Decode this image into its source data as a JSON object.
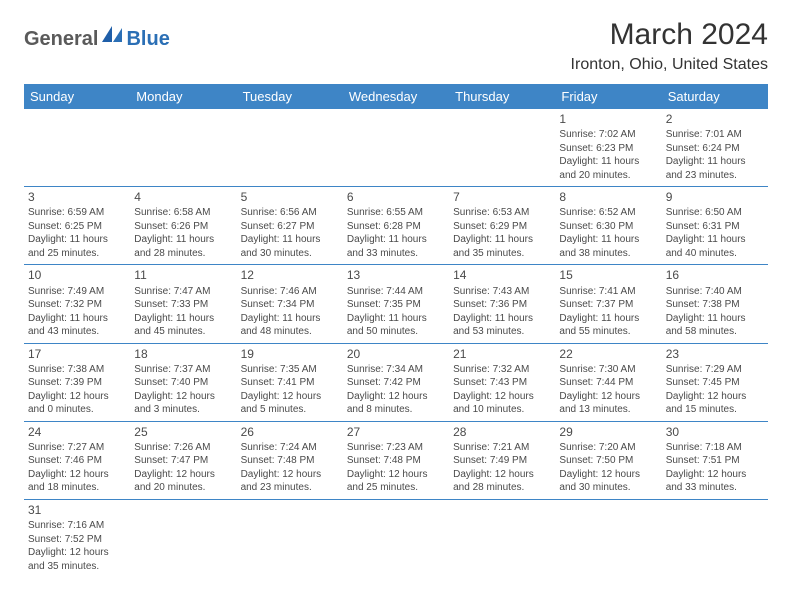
{
  "logo": {
    "part1": "General",
    "part2": "Blue"
  },
  "title": "March 2024",
  "location": "Ironton, Ohio, United States",
  "colors": {
    "header_bg": "#3e85c6",
    "header_text": "#ffffff",
    "border": "#3e85c6",
    "text": "#4a4a4a",
    "logo_gray": "#5a5a5a",
    "logo_blue": "#2b6fb5"
  },
  "day_headers": [
    "Sunday",
    "Monday",
    "Tuesday",
    "Wednesday",
    "Thursday",
    "Friday",
    "Saturday"
  ],
  "weeks": [
    [
      null,
      null,
      null,
      null,
      null,
      {
        "n": "1",
        "sr": "Sunrise: 7:02 AM",
        "ss": "Sunset: 6:23 PM",
        "d1": "Daylight: 11 hours",
        "d2": "and 20 minutes."
      },
      {
        "n": "2",
        "sr": "Sunrise: 7:01 AM",
        "ss": "Sunset: 6:24 PM",
        "d1": "Daylight: 11 hours",
        "d2": "and 23 minutes."
      }
    ],
    [
      {
        "n": "3",
        "sr": "Sunrise: 6:59 AM",
        "ss": "Sunset: 6:25 PM",
        "d1": "Daylight: 11 hours",
        "d2": "and 25 minutes."
      },
      {
        "n": "4",
        "sr": "Sunrise: 6:58 AM",
        "ss": "Sunset: 6:26 PM",
        "d1": "Daylight: 11 hours",
        "d2": "and 28 minutes."
      },
      {
        "n": "5",
        "sr": "Sunrise: 6:56 AM",
        "ss": "Sunset: 6:27 PM",
        "d1": "Daylight: 11 hours",
        "d2": "and 30 minutes."
      },
      {
        "n": "6",
        "sr": "Sunrise: 6:55 AM",
        "ss": "Sunset: 6:28 PM",
        "d1": "Daylight: 11 hours",
        "d2": "and 33 minutes."
      },
      {
        "n": "7",
        "sr": "Sunrise: 6:53 AM",
        "ss": "Sunset: 6:29 PM",
        "d1": "Daylight: 11 hours",
        "d2": "and 35 minutes."
      },
      {
        "n": "8",
        "sr": "Sunrise: 6:52 AM",
        "ss": "Sunset: 6:30 PM",
        "d1": "Daylight: 11 hours",
        "d2": "and 38 minutes."
      },
      {
        "n": "9",
        "sr": "Sunrise: 6:50 AM",
        "ss": "Sunset: 6:31 PM",
        "d1": "Daylight: 11 hours",
        "d2": "and 40 minutes."
      }
    ],
    [
      {
        "n": "10",
        "sr": "Sunrise: 7:49 AM",
        "ss": "Sunset: 7:32 PM",
        "d1": "Daylight: 11 hours",
        "d2": "and 43 minutes."
      },
      {
        "n": "11",
        "sr": "Sunrise: 7:47 AM",
        "ss": "Sunset: 7:33 PM",
        "d1": "Daylight: 11 hours",
        "d2": "and 45 minutes."
      },
      {
        "n": "12",
        "sr": "Sunrise: 7:46 AM",
        "ss": "Sunset: 7:34 PM",
        "d1": "Daylight: 11 hours",
        "d2": "and 48 minutes."
      },
      {
        "n": "13",
        "sr": "Sunrise: 7:44 AM",
        "ss": "Sunset: 7:35 PM",
        "d1": "Daylight: 11 hours",
        "d2": "and 50 minutes."
      },
      {
        "n": "14",
        "sr": "Sunrise: 7:43 AM",
        "ss": "Sunset: 7:36 PM",
        "d1": "Daylight: 11 hours",
        "d2": "and 53 minutes."
      },
      {
        "n": "15",
        "sr": "Sunrise: 7:41 AM",
        "ss": "Sunset: 7:37 PM",
        "d1": "Daylight: 11 hours",
        "d2": "and 55 minutes."
      },
      {
        "n": "16",
        "sr": "Sunrise: 7:40 AM",
        "ss": "Sunset: 7:38 PM",
        "d1": "Daylight: 11 hours",
        "d2": "and 58 minutes."
      }
    ],
    [
      {
        "n": "17",
        "sr": "Sunrise: 7:38 AM",
        "ss": "Sunset: 7:39 PM",
        "d1": "Daylight: 12 hours",
        "d2": "and 0 minutes."
      },
      {
        "n": "18",
        "sr": "Sunrise: 7:37 AM",
        "ss": "Sunset: 7:40 PM",
        "d1": "Daylight: 12 hours",
        "d2": "and 3 minutes."
      },
      {
        "n": "19",
        "sr": "Sunrise: 7:35 AM",
        "ss": "Sunset: 7:41 PM",
        "d1": "Daylight: 12 hours",
        "d2": "and 5 minutes."
      },
      {
        "n": "20",
        "sr": "Sunrise: 7:34 AM",
        "ss": "Sunset: 7:42 PM",
        "d1": "Daylight: 12 hours",
        "d2": "and 8 minutes."
      },
      {
        "n": "21",
        "sr": "Sunrise: 7:32 AM",
        "ss": "Sunset: 7:43 PM",
        "d1": "Daylight: 12 hours",
        "d2": "and 10 minutes."
      },
      {
        "n": "22",
        "sr": "Sunrise: 7:30 AM",
        "ss": "Sunset: 7:44 PM",
        "d1": "Daylight: 12 hours",
        "d2": "and 13 minutes."
      },
      {
        "n": "23",
        "sr": "Sunrise: 7:29 AM",
        "ss": "Sunset: 7:45 PM",
        "d1": "Daylight: 12 hours",
        "d2": "and 15 minutes."
      }
    ],
    [
      {
        "n": "24",
        "sr": "Sunrise: 7:27 AM",
        "ss": "Sunset: 7:46 PM",
        "d1": "Daylight: 12 hours",
        "d2": "and 18 minutes."
      },
      {
        "n": "25",
        "sr": "Sunrise: 7:26 AM",
        "ss": "Sunset: 7:47 PM",
        "d1": "Daylight: 12 hours",
        "d2": "and 20 minutes."
      },
      {
        "n": "26",
        "sr": "Sunrise: 7:24 AM",
        "ss": "Sunset: 7:48 PM",
        "d1": "Daylight: 12 hours",
        "d2": "and 23 minutes."
      },
      {
        "n": "27",
        "sr": "Sunrise: 7:23 AM",
        "ss": "Sunset: 7:48 PM",
        "d1": "Daylight: 12 hours",
        "d2": "and 25 minutes."
      },
      {
        "n": "28",
        "sr": "Sunrise: 7:21 AM",
        "ss": "Sunset: 7:49 PM",
        "d1": "Daylight: 12 hours",
        "d2": "and 28 minutes."
      },
      {
        "n": "29",
        "sr": "Sunrise: 7:20 AM",
        "ss": "Sunset: 7:50 PM",
        "d1": "Daylight: 12 hours",
        "d2": "and 30 minutes."
      },
      {
        "n": "30",
        "sr": "Sunrise: 7:18 AM",
        "ss": "Sunset: 7:51 PM",
        "d1": "Daylight: 12 hours",
        "d2": "and 33 minutes."
      }
    ],
    [
      {
        "n": "31",
        "sr": "Sunrise: 7:16 AM",
        "ss": "Sunset: 7:52 PM",
        "d1": "Daylight: 12 hours",
        "d2": "and 35 minutes."
      },
      null,
      null,
      null,
      null,
      null,
      null
    ]
  ]
}
